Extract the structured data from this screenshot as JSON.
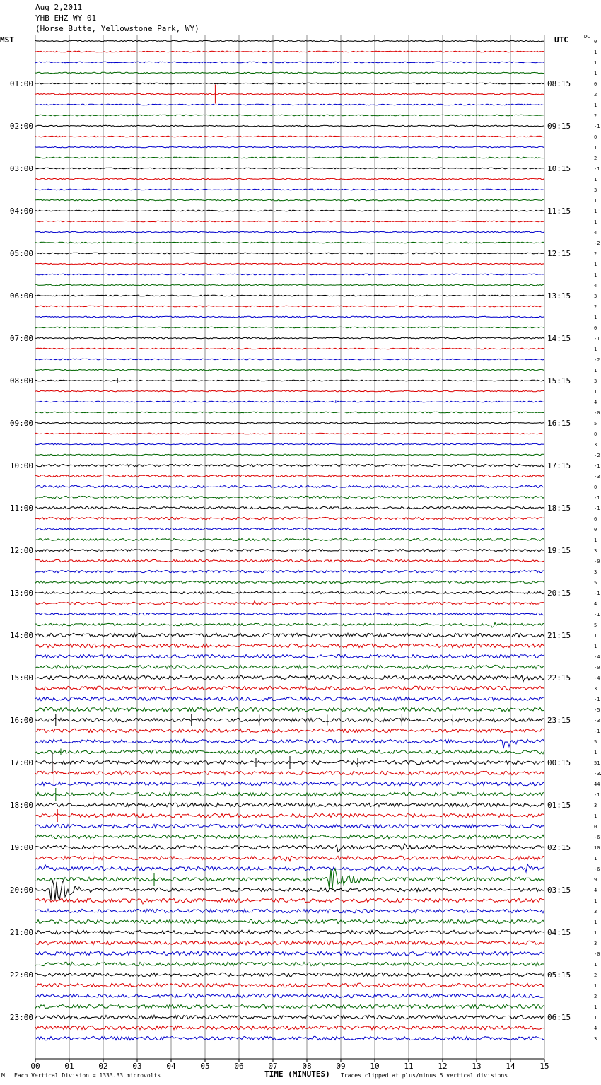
{
  "header": {
    "date": "Aug 2,2011",
    "station": "YHB EHZ WY 01",
    "location": "(Horse Butte, Yellowstone Park, WY)"
  },
  "left_axis_label": "MST",
  "right_axis_label": "UTC",
  "dc_label": "DC",
  "footer": {
    "scale_text": "Each Vertical Division = 1333.33 microvolts",
    "xlabel": "TIME (MINUTES)",
    "clip_text": "Traces clipped at plus/minus 5 vertical divisions",
    "mark": "M"
  },
  "colors": {
    "trace_cycle": [
      "#000000",
      "#dd0000",
      "#0000cc",
      "#006600"
    ],
    "grid": "#8c8c8c"
  },
  "chart_data": {
    "type": "line",
    "title": "Aug 2,2011 YHB EHZ WY 01 (Horse Butte, Yellowstone Park, WY)",
    "xlabel": "TIME (MINUTES)",
    "xlim": [
      0,
      15
    ],
    "x_ticks": [
      "00",
      "01",
      "02",
      "03",
      "04",
      "05",
      "06",
      "07",
      "08",
      "09",
      "10",
      "11",
      "12",
      "13",
      "14",
      "15"
    ],
    "trace_minutes": 15,
    "traces_per_hour": 4,
    "left_hour_labels": [
      "01:00",
      "02:00",
      "03:00",
      "04:00",
      "05:00",
      "06:00",
      "07:00",
      "08:00",
      "09:00",
      "10:00",
      "11:00",
      "12:00",
      "13:00",
      "14:00",
      "15:00",
      "16:00",
      "17:00",
      "18:00",
      "19:00",
      "20:00",
      "21:00",
      "22:00",
      "23:00"
    ],
    "right_hour_labels": [
      "08:15",
      "09:15",
      "10:15",
      "11:15",
      "12:15",
      "13:15",
      "14:15",
      "15:15",
      "16:15",
      "17:15",
      "18:15",
      "19:15",
      "20:15",
      "21:15",
      "22:15",
      "23:15",
      "00:15",
      "01:15",
      "02:15",
      "03:15",
      "04:15",
      "05:15",
      "06:15"
    ],
    "dc_offsets": [
      "0",
      "1",
      "1",
      "1",
      "0",
      "2",
      "1",
      "2",
      "-1",
      "0",
      "1",
      "2",
      "-1",
      "1",
      "3",
      "1",
      "1",
      "1",
      "4",
      "-2",
      "2",
      "1",
      "1",
      "4",
      "3",
      "2",
      "1",
      "0",
      "-1",
      "1",
      "-2",
      "1",
      "3",
      "1",
      "4",
      "-0",
      "5",
      "0",
      "3",
      "-2",
      "-1",
      "-3",
      "0",
      "-1",
      "-1",
      "6",
      "0",
      "1",
      "3",
      "-0",
      "3",
      "5",
      "-1",
      "4",
      "-1",
      "5",
      "1",
      "1",
      "-4",
      "-0",
      "-4",
      "3",
      "-1",
      "-5",
      "-3",
      "-1",
      "5",
      "1",
      "51",
      "-32",
      "44",
      "-1",
      "3",
      "1",
      "0",
      "-6",
      "10",
      "1",
      "-6",
      "9",
      "4",
      "1",
      "3",
      "1",
      "1",
      "3",
      "-0",
      "1",
      "2",
      "1",
      "2",
      "1",
      "1",
      "4",
      "3"
    ],
    "events": [
      {
        "trace": 5,
        "minute": 5.3,
        "amp": 4.5,
        "dur": 0.05,
        "kind": "spike"
      },
      {
        "trace": 32,
        "minute": 2.42,
        "amp": 1.0,
        "dur": 0.05,
        "kind": "spike"
      },
      {
        "trace": 34,
        "minute": 8.85,
        "amp": 0.6,
        "dur": 0.05,
        "kind": "spike"
      },
      {
        "trace": 43,
        "minute": 12.2,
        "amp": 0.5,
        "dur": 0.6,
        "kind": "burst"
      },
      {
        "trace": 47,
        "minute": 8.9,
        "amp": 0.5,
        "dur": 0.3,
        "kind": "burst"
      },
      {
        "trace": 53,
        "minute": 6.5,
        "amp": 1.2,
        "dur": 0.5,
        "kind": "burst"
      },
      {
        "trace": 54,
        "minute": 10.4,
        "amp": 0.8,
        "dur": 0.05,
        "kind": "spike"
      },
      {
        "trace": 55,
        "minute": 13.45,
        "amp": 1.8,
        "dur": 0.35,
        "kind": "burst"
      },
      {
        "trace": 60,
        "minute": 14.2,
        "amp": 2.0,
        "dur": 0.6,
        "kind": "burst"
      },
      {
        "trace": 61,
        "minute": 4.2,
        "amp": 0.6,
        "dur": 0.6,
        "kind": "burst"
      },
      {
        "trace": 64,
        "minute": 0.6,
        "amp": 3.0,
        "dur": 0.05,
        "kind": "spike"
      },
      {
        "trace": 64,
        "minute": 4.6,
        "amp": 3.0,
        "dur": 0.05,
        "kind": "spike"
      },
      {
        "trace": 64,
        "minute": 6.6,
        "amp": 2.5,
        "dur": 0.05,
        "kind": "spike"
      },
      {
        "trace": 64,
        "minute": 8.6,
        "amp": 2.5,
        "dur": 0.05,
        "kind": "spike"
      },
      {
        "trace": 64,
        "minute": 10.8,
        "amp": 3.0,
        "dur": 0.05,
        "kind": "spike"
      },
      {
        "trace": 64,
        "minute": 12.3,
        "amp": 2.5,
        "dur": 0.05,
        "kind": "spike"
      },
      {
        "trace": 66,
        "minute": 13.8,
        "amp": 3.0,
        "dur": 0.4,
        "kind": "burst"
      },
      {
        "trace": 67,
        "minute": 0.75,
        "amp": 1.5,
        "dur": 0.05,
        "kind": "spike"
      },
      {
        "trace": 68,
        "minute": 0.5,
        "amp": 5.0,
        "dur": 0.05,
        "kind": "spike"
      },
      {
        "trace": 68,
        "minute": 6.5,
        "amp": 2.0,
        "dur": 0.05,
        "kind": "spike"
      },
      {
        "trace": 68,
        "minute": 7.5,
        "amp": 3.0,
        "dur": 0.05,
        "kind": "spike"
      },
      {
        "trace": 68,
        "minute": 9.5,
        "amp": 2.0,
        "dur": 0.05,
        "kind": "spike"
      },
      {
        "trace": 69,
        "minute": 0.55,
        "amp": 5.0,
        "dur": 0.05,
        "kind": "spike"
      },
      {
        "trace": 71,
        "minute": 0.6,
        "amp": 3.0,
        "dur": 0.05,
        "kind": "spike"
      },
      {
        "trace": 73,
        "minute": 0.65,
        "amp": 3.0,
        "dur": 0.05,
        "kind": "spike"
      },
      {
        "trace": 76,
        "minute": 8.9,
        "amp": 1.6,
        "dur": 0.6,
        "kind": "burst"
      },
      {
        "trace": 76,
        "minute": 10.7,
        "amp": 1.2,
        "dur": 0.8,
        "kind": "burst"
      },
      {
        "trace": 77,
        "minute": 7.4,
        "amp": 1.0,
        "dur": 0.5,
        "kind": "burst"
      },
      {
        "trace": 77,
        "minute": 1.7,
        "amp": 3.0,
        "dur": 0.05,
        "kind": "spike"
      },
      {
        "trace": 78,
        "minute": 0.3,
        "amp": 1.5,
        "dur": 0.6,
        "kind": "burst"
      },
      {
        "trace": 78,
        "minute": 14.5,
        "amp": 1.0,
        "dur": 0.5,
        "kind": "burst"
      },
      {
        "trace": 79,
        "minute": 8.7,
        "amp": 5.0,
        "dur": 1.2,
        "kind": "burst"
      },
      {
        "trace": 79,
        "minute": 3.5,
        "amp": 3.0,
        "dur": 0.05,
        "kind": "spike"
      },
      {
        "trace": 80,
        "minute": 0.5,
        "amp": 5.0,
        "dur": 1.2,
        "kind": "burst"
      },
      {
        "trace": 81,
        "minute": 3.2,
        "amp": 0.4,
        "dur": 0.3,
        "kind": "burst"
      }
    ]
  }
}
